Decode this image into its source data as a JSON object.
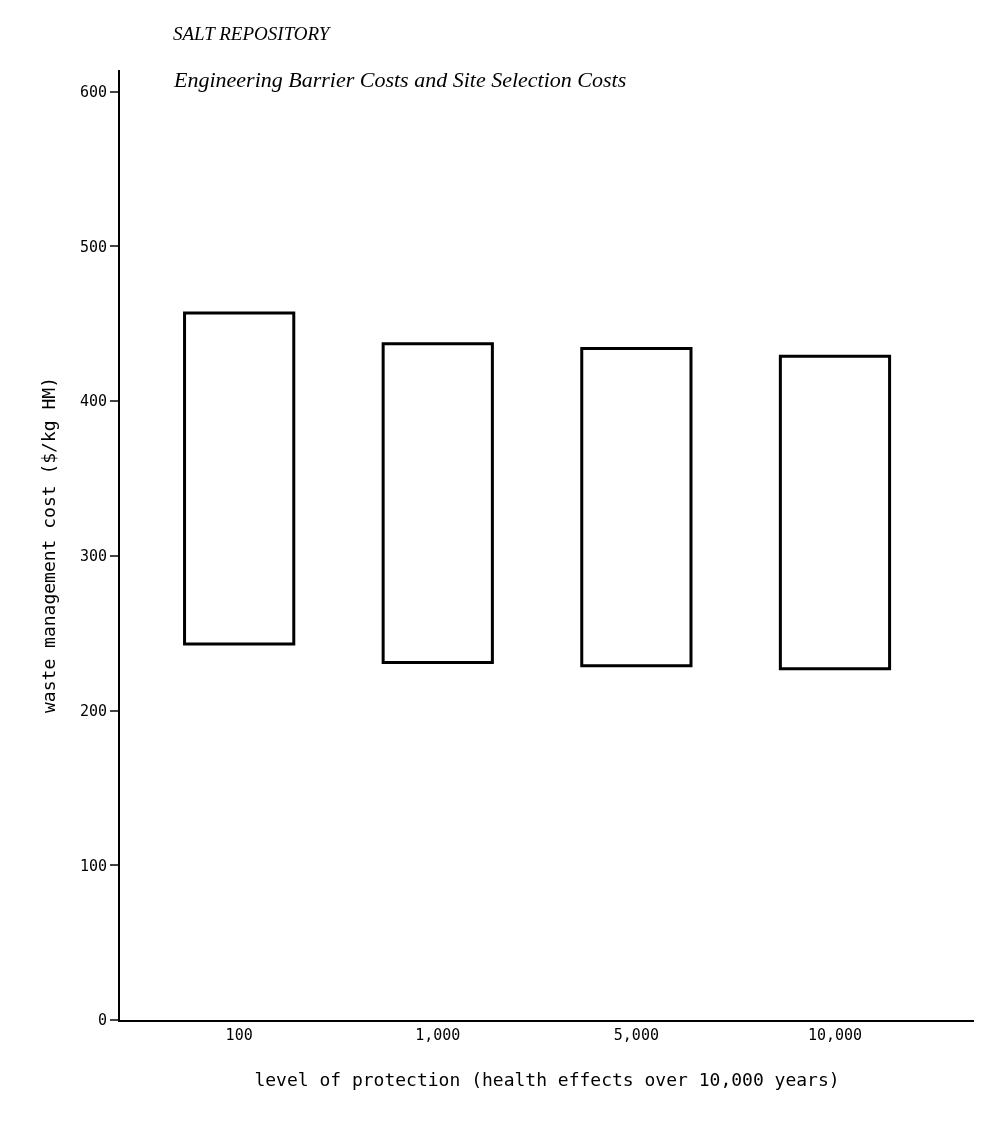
{
  "chart_data": {
    "type": "bar",
    "title": "SALT REPOSITORY",
    "subtitle": "Engineering Barrier Costs and Site Selection Costs",
    "xlabel": "level of protection (health effects over 10,000 years)",
    "ylabel": "waste management cost ($/kg HM)",
    "categories": [
      "100",
      "1,000",
      "5,000",
      "10,000"
    ],
    "series": [
      {
        "color": "#000000",
        "values": [
          214,
          206,
          205,
          202
        ],
        "base": [
          243,
          231,
          229,
          227
        ]
      }
    ],
    "ylim": [
      0,
      614
    ],
    "yticks": [
      0,
      100,
      200,
      300,
      400,
      500,
      600
    ]
  }
}
